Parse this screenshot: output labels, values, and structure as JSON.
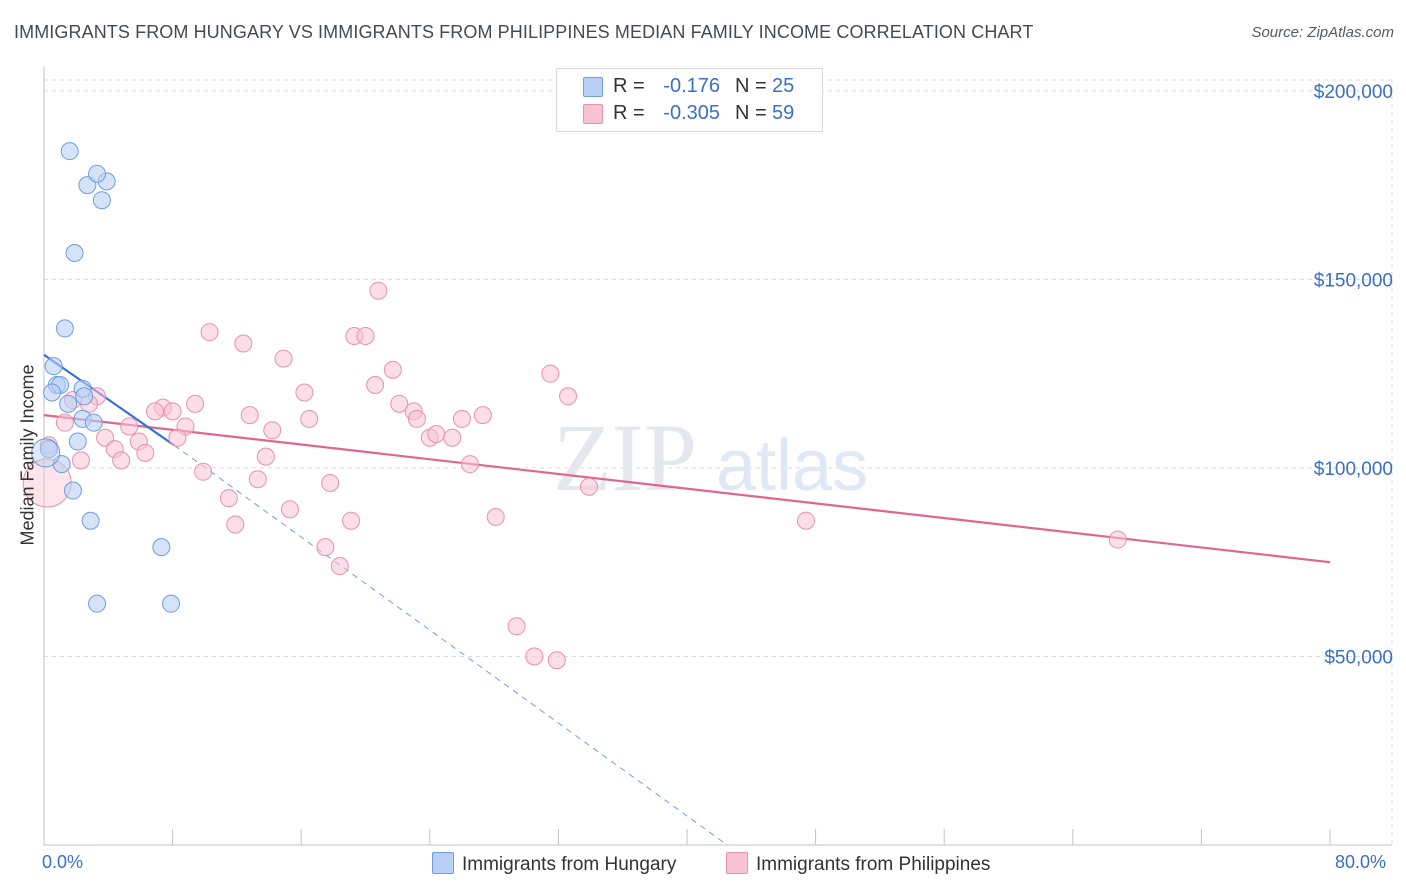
{
  "title": "IMMIGRANTS FROM HUNGARY VS IMMIGRANTS FROM PHILIPPINES MEDIAN FAMILY INCOME CORRELATION CHART",
  "source": "Source: ZipAtlas.com",
  "legend": {
    "series1": {
      "r_label": "R =",
      "r_value": "-0.176",
      "n_label": "N =",
      "n_value": "25"
    },
    "series2": {
      "r_label": "R =",
      "r_value": "-0.305",
      "n_label": "N =",
      "n_value": "59"
    }
  },
  "bottom_legend": {
    "series1": "Immigrants from Hungary",
    "series2": "Immigrants from Philippines"
  },
  "axes": {
    "x_min_label": "0.0%",
    "x_max_label": "80.0%",
    "ylabel": "Median Family Income"
  },
  "watermark": {
    "zip": "ZIP",
    "atlas": "atlas"
  },
  "colors": {
    "hungary_fill": "#b7d0f3",
    "hungary_stroke": "#6f9de0",
    "hungary_line": "#3b72d6",
    "philippines_fill": "#f8c3d3",
    "philippines_stroke": "#e891ad",
    "philippines_line": "#e0668f",
    "tick_label": "#3a6fc4",
    "grid": "#d8dbe0"
  },
  "chart_data": {
    "type": "scatter",
    "title": "IMMIGRANTS FROM HUNGARY VS IMMIGRANTS FROM PHILIPPINES MEDIAN FAMILY INCOME CORRELATION CHART",
    "xlabel": "",
    "ylabel": "Median Family Income",
    "xlim": [
      0,
      80
    ],
    "ylim": [
      0,
      205000
    ],
    "yticks": [
      50000,
      100000,
      150000,
      200000
    ],
    "ytick_labels": [
      "$50,000",
      "$100,000",
      "$150,000",
      "$200,000"
    ],
    "xtick_labels": [
      "0.0%",
      "80.0%"
    ],
    "grid": true,
    "series": [
      {
        "name": "Immigrants from Hungary",
        "r": -0.176,
        "n": 25,
        "trend": {
          "x": [
            0,
            8.1
          ],
          "y": [
            130000,
            106000
          ],
          "dashed_extension_x": [
            8.1,
            42.5
          ],
          "dashed_extension_y": [
            106000,
            0
          ]
        },
        "points": [
          {
            "x": 1.6,
            "y": 184000
          },
          {
            "x": 2.7,
            "y": 175000
          },
          {
            "x": 3.9,
            "y": 176000
          },
          {
            "x": 3.3,
            "y": 178000
          },
          {
            "x": 3.6,
            "y": 171000
          },
          {
            "x": 1.9,
            "y": 157000
          },
          {
            "x": 1.3,
            "y": 137000
          },
          {
            "x": 0.6,
            "y": 127000
          },
          {
            "x": 0.8,
            "y": 122000
          },
          {
            "x": 1.0,
            "y": 122000
          },
          {
            "x": 0.5,
            "y": 120000
          },
          {
            "x": 2.4,
            "y": 121000
          },
          {
            "x": 2.5,
            "y": 119000
          },
          {
            "x": 1.5,
            "y": 117000
          },
          {
            "x": 2.4,
            "y": 113000
          },
          {
            "x": 3.1,
            "y": 112000
          },
          {
            "x": 2.1,
            "y": 107000
          },
          {
            "x": 0.3,
            "y": 105000
          },
          {
            "x": 1.1,
            "y": 101000
          },
          {
            "x": 1.8,
            "y": 94000
          },
          {
            "x": 2.9,
            "y": 86000
          },
          {
            "x": 7.3,
            "y": 79000
          },
          {
            "x": 3.3,
            "y": 64000
          },
          {
            "x": 7.9,
            "y": 64000
          },
          {
            "x": 0.1,
            "y": 104000
          }
        ]
      },
      {
        "name": "Immigrants from Philippines",
        "r": -0.305,
        "n": 59,
        "trend": {
          "x": [
            0,
            80
          ],
          "y": [
            114000,
            75000
          ]
        },
        "points": [
          {
            "x": 20.8,
            "y": 147000
          },
          {
            "x": 10.3,
            "y": 136000
          },
          {
            "x": 19.3,
            "y": 135000
          },
          {
            "x": 20.0,
            "y": 135000
          },
          {
            "x": 12.4,
            "y": 133000
          },
          {
            "x": 14.9,
            "y": 129000
          },
          {
            "x": 21.7,
            "y": 126000
          },
          {
            "x": 31.5,
            "y": 125000
          },
          {
            "x": 20.6,
            "y": 122000
          },
          {
            "x": 32.6,
            "y": 119000
          },
          {
            "x": 16.2,
            "y": 120000
          },
          {
            "x": 3.3,
            "y": 119000
          },
          {
            "x": 1.8,
            "y": 118000
          },
          {
            "x": 9.4,
            "y": 117000
          },
          {
            "x": 7.4,
            "y": 116000
          },
          {
            "x": 8.0,
            "y": 115000
          },
          {
            "x": 22.1,
            "y": 117000
          },
          {
            "x": 2.8,
            "y": 117000
          },
          {
            "x": 23.0,
            "y": 115000
          },
          {
            "x": 6.9,
            "y": 115000
          },
          {
            "x": 12.8,
            "y": 114000
          },
          {
            "x": 16.5,
            "y": 113000
          },
          {
            "x": 23.2,
            "y": 113000
          },
          {
            "x": 26.0,
            "y": 113000
          },
          {
            "x": 27.3,
            "y": 114000
          },
          {
            "x": 1.3,
            "y": 112000
          },
          {
            "x": 5.3,
            "y": 111000
          },
          {
            "x": 8.8,
            "y": 111000
          },
          {
            "x": 14.2,
            "y": 110000
          },
          {
            "x": 24.0,
            "y": 108000
          },
          {
            "x": 24.4,
            "y": 109000
          },
          {
            "x": 25.4,
            "y": 108000
          },
          {
            "x": 8.3,
            "y": 108000
          },
          {
            "x": 3.8,
            "y": 108000
          },
          {
            "x": 5.9,
            "y": 107000
          },
          {
            "x": 0.3,
            "y": 106000
          },
          {
            "x": 4.4,
            "y": 105000
          },
          {
            "x": 6.3,
            "y": 104000
          },
          {
            "x": 2.3,
            "y": 102000
          },
          {
            "x": 4.8,
            "y": 102000
          },
          {
            "x": 13.8,
            "y": 103000
          },
          {
            "x": 26.5,
            "y": 101000
          },
          {
            "x": 9.9,
            "y": 99000
          },
          {
            "x": 13.3,
            "y": 97000
          },
          {
            "x": 17.8,
            "y": 96000
          },
          {
            "x": 33.9,
            "y": 95000
          },
          {
            "x": 11.5,
            "y": 92000
          },
          {
            "x": 15.3,
            "y": 89000
          },
          {
            "x": 28.1,
            "y": 87000
          },
          {
            "x": 19.1,
            "y": 86000
          },
          {
            "x": 47.4,
            "y": 86000
          },
          {
            "x": 11.9,
            "y": 85000
          },
          {
            "x": 66.8,
            "y": 81000
          },
          {
            "x": 17.5,
            "y": 79000
          },
          {
            "x": 18.4,
            "y": 74000
          },
          {
            "x": 29.4,
            "y": 58000
          },
          {
            "x": 30.5,
            "y": 50000
          },
          {
            "x": 31.9,
            "y": 49000
          },
          {
            "x": 0.2,
            "y": 96000
          }
        ]
      }
    ]
  }
}
